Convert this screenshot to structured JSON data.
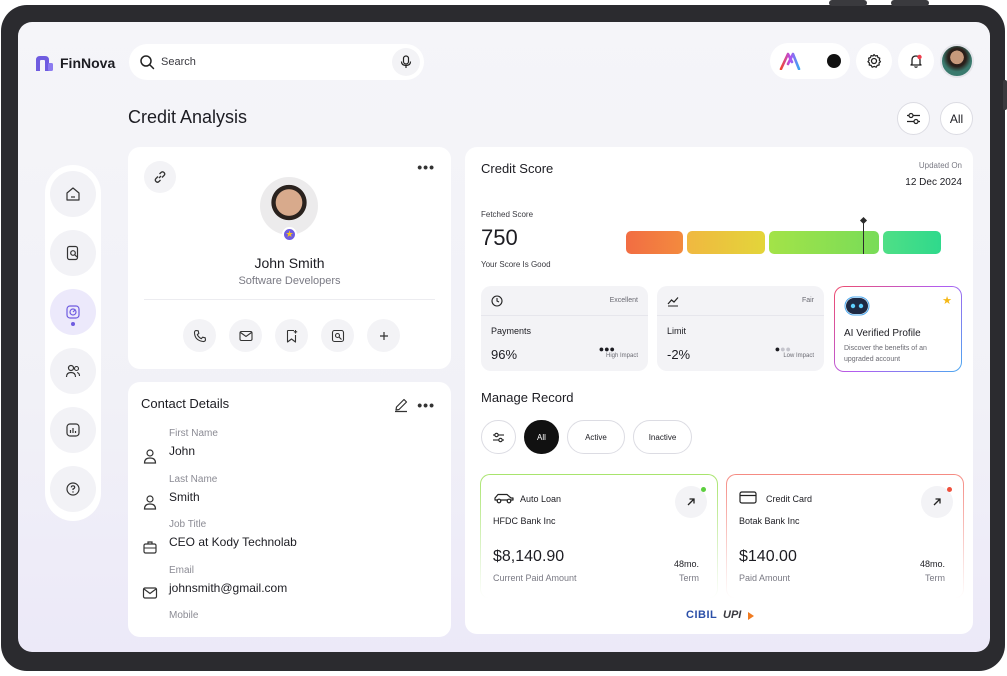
{
  "app": {
    "name": "FinNova"
  },
  "search": {
    "placeholder": "Search"
  },
  "header": {
    "all_label": "All"
  },
  "page": {
    "title": "Credit Analysis"
  },
  "profile": {
    "name": "John Smith",
    "role": "Software Developers",
    "actions": [
      "phone-icon",
      "mail-icon",
      "bookmark-add-icon",
      "image-search-icon",
      "plus-icon"
    ]
  },
  "contact": {
    "title": "Contact Details",
    "fields": [
      {
        "label": "First Name",
        "value": "John",
        "icon": "user-icon"
      },
      {
        "label": "Last Name",
        "value": "Smith",
        "icon": "user-icon"
      },
      {
        "label": "Job Title",
        "value": "CEO at Kody Technolab",
        "icon": "briefcase-icon"
      },
      {
        "label": "Email",
        "value": "johnsmith@gmail.com",
        "icon": "mail-icon"
      },
      {
        "label": "Mobile",
        "value": "",
        "icon": "phone-icon"
      }
    ]
  },
  "credit_score": {
    "title": "Credit Score",
    "updated_label": "Updated On",
    "updated_date": "12 Dec 2024",
    "fetched_label": "Fetched Score",
    "score": "750",
    "status_prefix": "Your Score Is ",
    "status_value": "Good",
    "scale_colors": [
      "#f26d43",
      "#e6cf3c",
      "#94e14e",
      "#2fd987"
    ]
  },
  "metrics": [
    {
      "name": "Payments",
      "rating": "Excellent",
      "value": "96%",
      "impact": "High Impact",
      "icon": "clock-icon"
    },
    {
      "name": "Limit",
      "rating": "Fair",
      "value": "-2%",
      "impact": "Low Impact",
      "icon": "trend-icon"
    }
  ],
  "ai_profile": {
    "title": "AI Verified Profile",
    "description": "Discover the benefits of an upgraded account"
  },
  "manage_record": {
    "title": "Manage Record",
    "filters": [
      "All",
      "Active",
      "Inactive"
    ],
    "selected": "All"
  },
  "records": [
    {
      "type": "Auto Loan",
      "bank": "HFDC Bank Inc",
      "amount": "$8,140.90",
      "amount_label": "Current Paid Amount",
      "term": "48mo.",
      "term_label": "Term",
      "accent": "#8fdc5a"
    },
    {
      "type": "Credit Card",
      "bank": "Botak Bank Inc",
      "amount": "$140.00",
      "amount_label": "Paid Amount",
      "term": "48mo.",
      "term_label": "Term",
      "accent": "#f0655c"
    }
  ],
  "footer_brands": {
    "cibil": "CIBIL",
    "upi": "UPI"
  }
}
